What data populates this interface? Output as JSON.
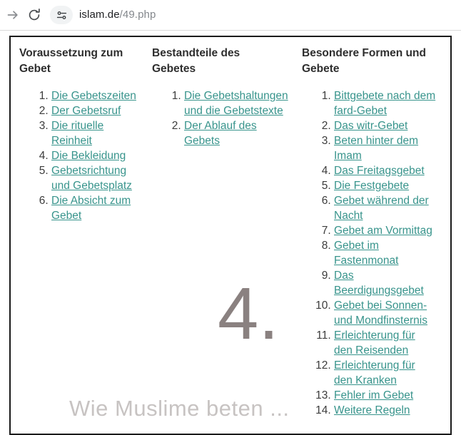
{
  "browser": {
    "url": {
      "host": "islam.de",
      "path": "/49.php"
    }
  },
  "content": {
    "columns": [
      {
        "title": "Voraussetzung zum Gebet",
        "items": [
          "Die Gebetszeiten",
          "Der Gebetsruf",
          "Die rituelle Reinheit",
          "Die Bekleidung",
          "Gebetsrichtung und Gebetsplatz",
          "Die Absicht zum Gebet"
        ]
      },
      {
        "title": "Bestandteile des Gebetes",
        "items": [
          "Die Gebetshaltungen und die Gebetstexte",
          "Der Ablauf des Gebets"
        ]
      },
      {
        "title": "Besondere Formen und Gebete",
        "items": [
          "Bittgebete nach dem fard-Gebet",
          "Das witr-Gebet",
          "Beten hinter dem Imam",
          "Das Freitagsgebet",
          "Die Festgebete",
          "Gebet während der Nacht",
          "Gebet am Vormittag",
          "Gebet im Fastenmonat",
          "Das Beerdigungsgebet",
          "Gebet bei Sonnen- und Mondfinsternis",
          "Erleichterung für den Reisenden",
          "Erleichterung für den Kranken",
          "Fehler im Gebet",
          "Weitere Regeln"
        ]
      }
    ],
    "watermark": {
      "number": "4.",
      "caption": "Wie Muslime beten ..."
    }
  },
  "colors": {
    "link": "#38948c",
    "watermark_number": "#8a8180",
    "watermark_caption": "#c7c3c2",
    "frame_border": "#1b1b1b"
  }
}
